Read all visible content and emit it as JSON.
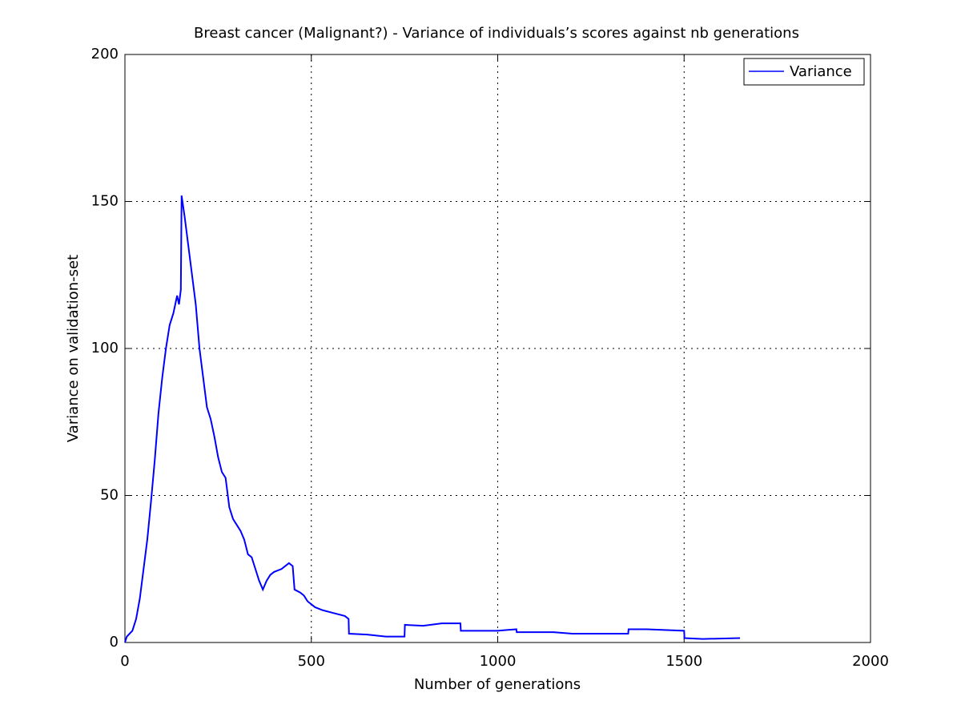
{
  "chart_data": {
    "type": "line",
    "title": "Breast cancer (Malignant?) - Variance of individuals’s scores against nb generations",
    "x_label": "Number of generations",
    "y_label": "Variance on validation-set",
    "x": [
      0,
      5,
      20,
      30,
      40,
      50,
      60,
      70,
      80,
      90,
      100,
      110,
      120,
      130,
      140,
      145,
      150,
      152,
      160,
      170,
      180,
      190,
      200,
      210,
      220,
      230,
      240,
      250,
      260,
      270,
      280,
      290,
      300,
      310,
      320,
      330,
      340,
      350,
      360,
      370,
      380,
      390,
      400,
      420,
      440,
      450,
      455,
      470,
      480,
      490,
      500,
      510,
      530,
      560,
      590,
      600,
      601,
      650,
      700,
      750,
      751,
      800,
      850,
      900,
      901,
      1000,
      1050,
      1051,
      1150,
      1200,
      1350,
      1351,
      1400,
      1500,
      1501,
      1550,
      1650
    ],
    "series": [
      {
        "name": "Variance",
        "color": "#0000ff",
        "values": [
          0,
          2,
          4,
          8,
          15,
          25,
          35,
          48,
          62,
          78,
          90,
          100,
          108,
          112,
          118,
          115,
          120,
          152,
          145,
          135,
          125,
          115,
          100,
          90,
          80,
          76,
          70,
          63,
          58,
          56,
          46,
          42,
          40,
          38,
          35,
          30,
          29,
          25,
          21,
          18,
          21,
          23,
          24,
          25,
          27,
          26,
          18,
          17,
          16,
          14,
          13,
          12,
          11,
          10,
          9,
          8,
          3,
          2.7,
          2,
          2,
          6,
          5.7,
          6.5,
          6.5,
          4,
          4,
          4.5,
          3.5,
          3.5,
          3,
          3,
          4.5,
          4.5,
          4,
          1.5,
          1.2,
          1.5
        ]
      }
    ],
    "xlim": [
      0,
      2000
    ],
    "xticks": [
      0,
      500,
      1000,
      1500,
      2000
    ],
    "ylim": [
      0,
      200
    ],
    "yticks": [
      0,
      50,
      100,
      150,
      200
    ],
    "grid": true,
    "legend": "top-right"
  }
}
